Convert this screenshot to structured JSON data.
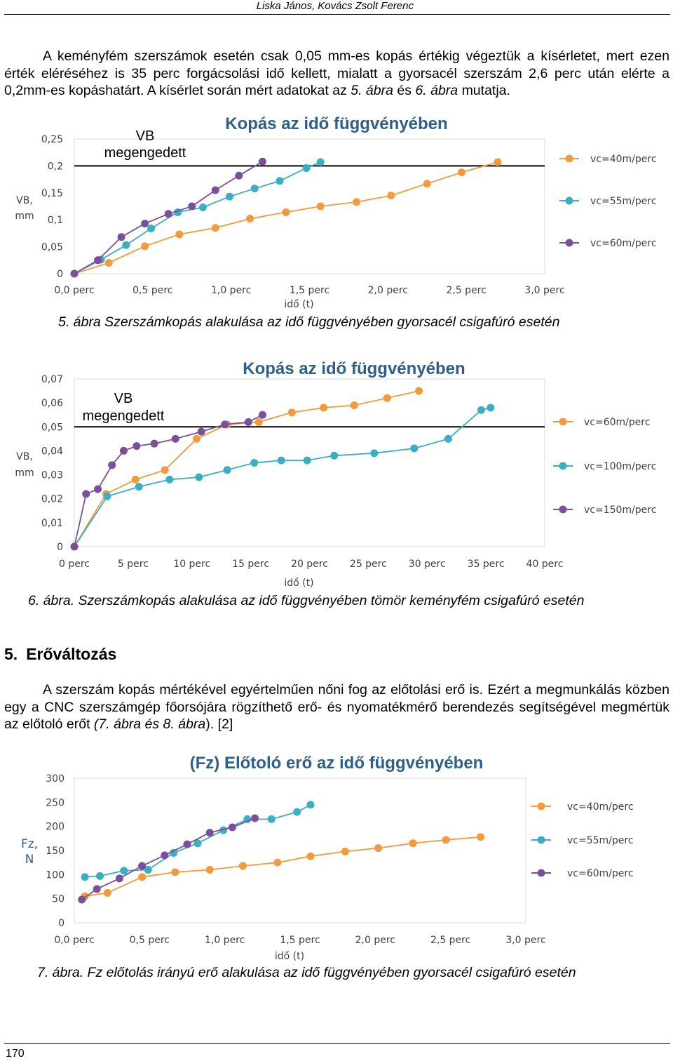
{
  "header": {
    "authors": "Liska János, Kovács Zsolt Ferenc"
  },
  "paragraphs": {
    "intro": "A keményfém szerszámok esetén csak 0,05 mm-es kopás értékig végeztük a kísérletet, mert ezen érték eléréséhez is 35 perc forgácsolási idő kellett, mialatt a gyorsacél szerszám 2,6 perc után elérte a 0,2mm-es kopáshatárt. A kísérlet során mért adatokat az",
    "intro_ref1": "5. ábra",
    "intro_mid": "és",
    "intro_ref2": "6. ábra",
    "intro_end": "mutatja.",
    "force_a": "A szerszám kopás mértékével egyértelműen nőni fog az előtolási erő is. Ezért a megmunkálás közben egy a CNC szerszámgép főorsójára rögzíthető erő- és nyomatékmérő berendezés segítségével megmértük az előtoló erőt",
    "force_ref": "(7. ábra és 8. ábra",
    "force_end": "). [2]"
  },
  "section": {
    "number": "5.",
    "title": "Erőváltozás"
  },
  "captions": {
    "fig5": "5. ábra Szerszámkopás alakulása az idő függvényében gyorsacél csigafúró esetén",
    "fig6": "6. ábra. Szerszámkopás alakulása az idő függvényében tömör keményfém csigafúró esetén",
    "fig7": "7. ábra. Fz előtolás irányú erő alakulása az idő függvényében gyorsacél csigafúró esetén"
  },
  "page_number": "170",
  "colors": {
    "orange": "#f39a3c",
    "teal": "#3aaec4",
    "purple": "#7b4f9d",
    "title": "#2e5f8a"
  },
  "chart_data": [
    {
      "type": "line",
      "title": "Kopás az idő függvényében",
      "xlabel": "idő (t)",
      "ylabel": "VB, mm",
      "xlim": [
        0,
        3.0
      ],
      "ylim": [
        0,
        0.25
      ],
      "x_ticks": [
        "0,0 perc",
        "0,5 perc",
        "1,0 perc",
        "1,5 perc",
        "2,0 perc",
        "2,5 perc",
        "3,0 perc"
      ],
      "y_ticks": [
        "0",
        "0,05",
        "0,1",
        "0,15",
        "0,2",
        "0,25"
      ],
      "threshold": {
        "label_line1": "VB",
        "label_line2": "megengedett",
        "value": 0.2
      },
      "legend_position": "right",
      "series": [
        {
          "name": "vc=40m/perc",
          "color": "#f39a3c",
          "x": [
            0,
            0.22,
            0.45,
            0.67,
            0.9,
            1.12,
            1.35,
            1.57,
            1.8,
            2.02,
            2.25,
            2.47,
            2.7
          ],
          "y": [
            0,
            0.02,
            0.051,
            0.073,
            0.085,
            0.102,
            0.114,
            0.125,
            0.133,
            0.145,
            0.167,
            0.188,
            0.207
          ]
        },
        {
          "name": "vc=55m/perc",
          "color": "#3aaec4",
          "x": [
            0,
            0.17,
            0.33,
            0.49,
            0.66,
            0.82,
            0.99,
            1.15,
            1.31,
            1.48,
            1.57
          ],
          "y": [
            0,
            0.026,
            0.053,
            0.084,
            0.114,
            0.123,
            0.143,
            0.158,
            0.172,
            0.196,
            0.207
          ]
        },
        {
          "name": "vc=60m/perc",
          "color": "#7b4f9d",
          "x": [
            0,
            0.15,
            0.3,
            0.45,
            0.6,
            0.75,
            0.9,
            1.05,
            1.2
          ],
          "y": [
            0,
            0.025,
            0.068,
            0.093,
            0.111,
            0.125,
            0.155,
            0.182,
            0.208
          ]
        }
      ]
    },
    {
      "type": "line",
      "title": "Kopás az idő függvényében",
      "xlabel": "idő (t)",
      "ylabel": "VB, mm",
      "xlim": [
        0,
        40
      ],
      "ylim": [
        0,
        0.07
      ],
      "x_ticks": [
        "0 perc",
        "5 perc",
        "10 perc",
        "15 perc",
        "20 perc",
        "25 perc",
        "30 perc",
        "35 perc",
        "40 perc"
      ],
      "y_ticks": [
        "0",
        "0,01",
        "0,02",
        "0,03",
        "0,04",
        "0,05",
        "0,06",
        "0,07"
      ],
      "threshold": {
        "label_line1": "VB",
        "label_line2": "megengedett",
        "value": 0.05
      },
      "legend_position": "right",
      "series": [
        {
          "name": "vc=60m/perc",
          "color": "#f39a3c",
          "x": [
            0,
            2.7,
            5.2,
            7.7,
            10.4,
            13.0,
            15.7,
            18.5,
            21.2,
            23.8,
            26.6,
            29.3
          ],
          "y": [
            0,
            0.022,
            0.028,
            0.032,
            0.045,
            0.051,
            0.052,
            0.056,
            0.058,
            0.059,
            0.062,
            0.065
          ]
        },
        {
          "name": "vc=100m/perc",
          "color": "#3aaec4",
          "x": [
            0,
            2.8,
            5.5,
            8.1,
            10.6,
            13.0,
            15.3,
            17.6,
            19.8,
            22.1,
            25.5,
            28.9,
            31.8,
            34.6,
            35.4
          ],
          "y": [
            0,
            0.021,
            0.025,
            0.028,
            0.029,
            0.032,
            0.035,
            0.036,
            0.036,
            0.038,
            0.039,
            0.041,
            0.045,
            0.057,
            0.058
          ]
        },
        {
          "name": "vc=150m/perc",
          "color": "#7b4f9d",
          "x": [
            0,
            1.0,
            2.0,
            3.2,
            4.2,
            5.3,
            6.8,
            8.6,
            10.8,
            12.8,
            14.8,
            16.0
          ],
          "y": [
            0,
            0.022,
            0.024,
            0.034,
            0.04,
            0.042,
            0.043,
            0.045,
            0.048,
            0.051,
            0.052,
            0.055
          ]
        }
      ]
    },
    {
      "type": "line",
      "title": "(Fz) Előtoló erő az idő függvényében",
      "xlabel": "idő (t)",
      "ylabel": "Fz, N",
      "xlim": [
        0,
        3.0
      ],
      "ylim": [
        0,
        300
      ],
      "x_ticks": [
        "0,0 perc",
        "0,5 perc",
        "1,0 perc",
        "1,5 perc",
        "2,0 perc",
        "2,5 perc",
        "3,0 perc"
      ],
      "y_ticks": [
        "0",
        "50",
        "100",
        "150",
        "200",
        "250",
        "300"
      ],
      "legend_position": "right",
      "series": [
        {
          "name": "vc=40m/perc",
          "color": "#f39a3c",
          "x": [
            0.07,
            0.22,
            0.45,
            0.67,
            0.9,
            1.12,
            1.35,
            1.57,
            1.8,
            2.02,
            2.25,
            2.47,
            2.7
          ],
          "y": [
            55,
            62,
            95,
            105,
            110,
            118,
            125,
            138,
            148,
            155,
            165,
            172,
            178
          ]
        },
        {
          "name": "vc=55m/perc",
          "color": "#3aaec4",
          "x": [
            0.07,
            0.17,
            0.33,
            0.49,
            0.66,
            0.82,
            0.99,
            1.15,
            1.31,
            1.48,
            1.57
          ],
          "y": [
            95,
            97,
            108,
            110,
            145,
            165,
            192,
            215,
            215,
            230,
            245
          ]
        },
        {
          "name": "vc=60m/perc",
          "color": "#7b4f9d",
          "x": [
            0.05,
            0.15,
            0.3,
            0.45,
            0.6,
            0.75,
            0.9,
            1.05,
            1.2
          ],
          "y": [
            48,
            70,
            92,
            118,
            140,
            163,
            187,
            198,
            217
          ]
        }
      ]
    }
  ]
}
